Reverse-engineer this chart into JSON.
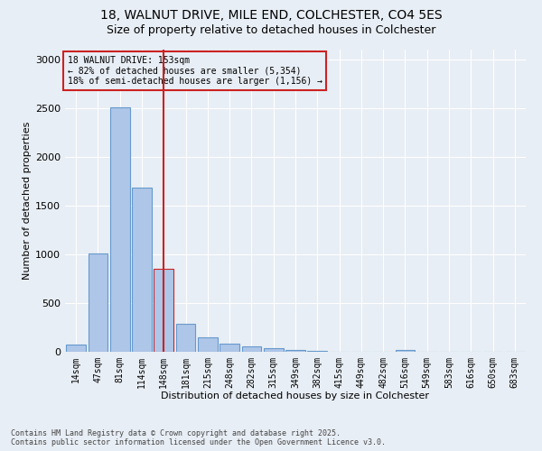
{
  "title1": "18, WALNUT DRIVE, MILE END, COLCHESTER, CO4 5ES",
  "title2": "Size of property relative to detached houses in Colchester",
  "xlabel": "Distribution of detached houses by size in Colchester",
  "ylabel": "Number of detached properties",
  "categories": [
    "14sqm",
    "47sqm",
    "81sqm",
    "114sqm",
    "148sqm",
    "181sqm",
    "215sqm",
    "248sqm",
    "282sqm",
    "315sqm",
    "349sqm",
    "382sqm",
    "415sqm",
    "449sqm",
    "482sqm",
    "516sqm",
    "549sqm",
    "583sqm",
    "616sqm",
    "650sqm",
    "683sqm"
  ],
  "values": [
    75,
    1010,
    2510,
    1680,
    850,
    290,
    150,
    80,
    55,
    35,
    15,
    5,
    2,
    0,
    0,
    18,
    0,
    0,
    0,
    0,
    0
  ],
  "bar_color": "#aec6e8",
  "bar_edge_color": "#6699cc",
  "highlight_bar_index": 4,
  "highlight_bar_color": "#aec6e8",
  "highlight_bar_edge_color": "#cc2222",
  "vline_color": "#cc2222",
  "annotation_title": "18 WALNUT DRIVE: 153sqm",
  "annotation_line2": "← 82% of detached houses are smaller (5,354)",
  "annotation_line3": "18% of semi-detached houses are larger (1,156) →",
  "annotation_box_color": "#cc2222",
  "ylim": [
    0,
    3100
  ],
  "yticks": [
    0,
    500,
    1000,
    1500,
    2000,
    2500,
    3000
  ],
  "footer1": "Contains HM Land Registry data © Crown copyright and database right 2025.",
  "footer2": "Contains public sector information licensed under the Open Government Licence v3.0.",
  "bg_color": "#e8eef5",
  "grid_color": "#ffffff",
  "title1_fontsize": 10,
  "title2_fontsize": 9
}
